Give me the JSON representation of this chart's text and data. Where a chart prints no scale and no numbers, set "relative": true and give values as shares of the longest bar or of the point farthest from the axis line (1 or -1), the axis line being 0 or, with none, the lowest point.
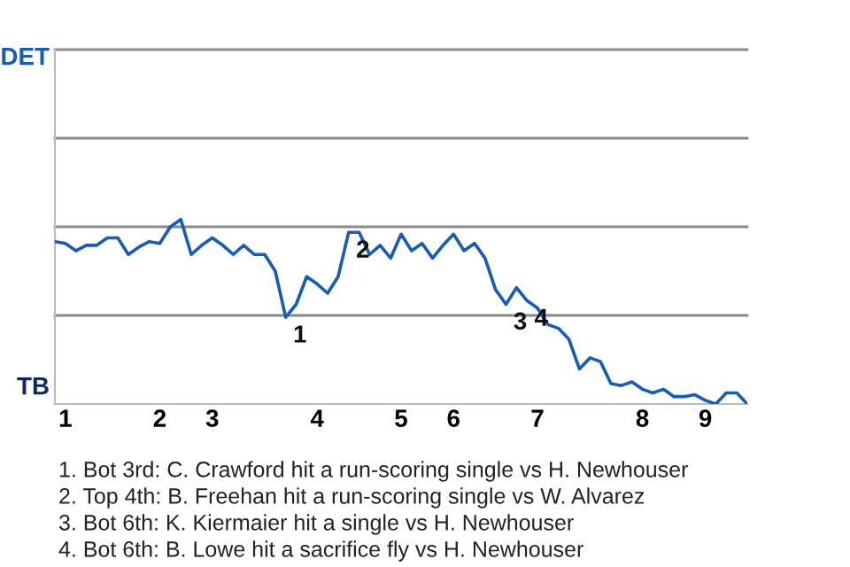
{
  "chart_data": {
    "type": "line",
    "categories": [
      null,
      "1",
      null,
      null,
      null,
      null,
      null,
      null,
      null,
      null,
      "2",
      null,
      null,
      null,
      null,
      "3",
      null,
      null,
      null,
      null,
      null,
      null,
      null,
      null,
      null,
      "4",
      null,
      null,
      null,
      null,
      null,
      null,
      null,
      "5",
      null,
      null,
      null,
      null,
      "6",
      null,
      null,
      null,
      null,
      null,
      null,
      null,
      "7",
      null,
      null,
      null,
      null,
      null,
      null,
      null,
      null,
      null,
      "8",
      null,
      null,
      null,
      null,
      null,
      "9",
      null,
      null,
      null,
      null
    ],
    "relative": true,
    "series": [
      {
        "color": "#1a5cb4",
        "values": [
          0.88,
          0.87,
          0.83,
          0.86,
          0.86,
          0.9,
          0.9,
          0.81,
          0.85,
          0.88,
          0.87,
          0.96,
          1,
          0.81,
          0.86,
          0.9,
          0.86,
          0.81,
          0.86,
          0.81,
          0.81,
          0.72,
          0.47,
          0.54,
          0.69,
          0.65,
          0.6,
          0.69,
          0.93,
          0.93,
          0.81,
          0.86,
          0.79,
          0.92,
          0.83,
          0.87,
          0.79,
          0.86,
          0.92,
          0.83,
          0.87,
          0.79,
          0.62,
          0.54,
          0.63,
          0.56,
          0.52,
          0.43,
          0.41,
          0.35,
          0.19,
          0.25,
          0.23,
          0.11,
          0.1,
          0.12,
          0.08,
          0.06,
          0.08,
          0.04,
          0.04,
          0.05,
          0.02,
          0,
          0.06,
          0.06,
          0
        ],
        "line_style": "solid"
      }
    ],
    "ref_lines": [
      {
        "axis": "y",
        "value": 0.48,
        "color": "#888888"
      },
      {
        "axis": "y",
        "value": 0.96,
        "color": "#888888"
      },
      {
        "axis": "y",
        "value": 1.44,
        "color": "#888888"
      },
      {
        "axis": "y",
        "value": 1.92,
        "color": "#888888"
      }
    ],
    "annotations": [
      "DET",
      "TB",
      {
        "text": "1",
        "y": 0.47
      },
      {
        "text": "2",
        "y": 0.93
      },
      {
        "text": "3",
        "y": 0.54
      },
      {
        "text": "4",
        "y": 0.56
      },
      "1. Bot 3rd: C. Crawford hit a run-scoring single vs H. Newhouser",
      "2. Top 4th: B. Freehan hit a run-scoring single vs W. Alvarez",
      "3. Bot 6th: K. Kiermaier hit a single vs H. Newhouser",
      "4. Bot 6th: B. Lowe hit a sacrifice fly vs H. Newhouser"
    ],
    "marker": "none"
  }
}
